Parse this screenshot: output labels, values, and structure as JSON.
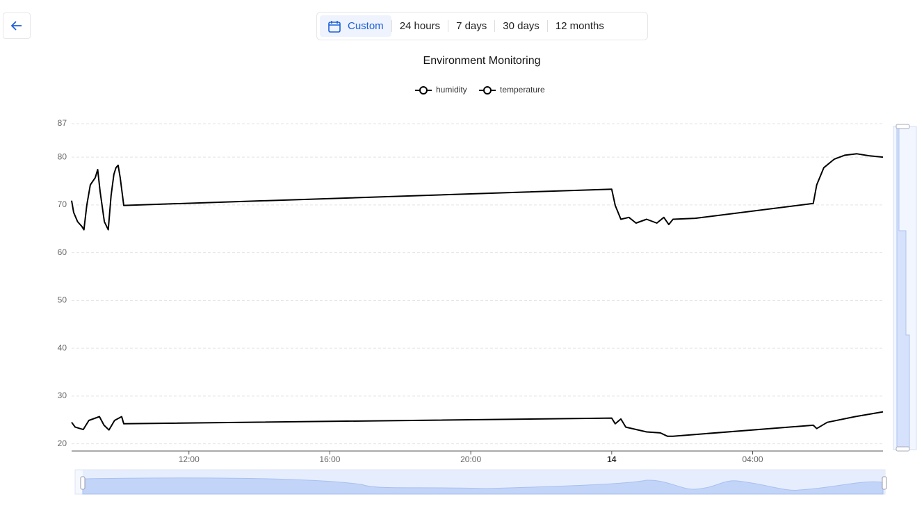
{
  "toolbar": {
    "buttons": [
      "Custom",
      "24 hours",
      "7 days",
      "30 days",
      "12 months"
    ]
  },
  "chart_data": {
    "type": "line",
    "title": "Environment Monitoring",
    "xlim": [
      8.67,
      31.7
    ],
    "xticks": [
      {
        "value": 12,
        "label": "12:00"
      },
      {
        "value": 16,
        "label": "16:00"
      },
      {
        "value": 20,
        "label": "20:00"
      },
      {
        "value": 24,
        "label": "14"
      },
      {
        "value": 28,
        "label": "04:00"
      }
    ],
    "ylim": [
      18.5,
      87
    ],
    "yticks": [
      20,
      30,
      40,
      50,
      60,
      70,
      80,
      87
    ],
    "grid": true,
    "legend": "top",
    "series": [
      {
        "name": "humidity",
        "color": "#000000",
        "x": [
          8.67,
          8.73,
          8.84,
          8.96,
          9.02,
          9.1,
          9.2,
          9.34,
          9.41,
          9.48,
          9.6,
          9.71,
          9.79,
          9.87,
          9.93,
          9.99,
          10.05,
          10.15,
          24.0,
          24.1,
          24.26,
          24.49,
          24.69,
          24.99,
          25.28,
          25.48,
          25.62,
          25.74,
          26.37,
          29.72,
          29.82,
          30.02,
          30.32,
          30.61,
          30.96,
          31.3,
          31.7
        ],
        "values": [
          70.9,
          68.4,
          66.5,
          65.5,
          64.8,
          69.9,
          74.2,
          75.7,
          77.4,
          72.8,
          66.5,
          64.8,
          72,
          76.4,
          77.8,
          78.3,
          75.7,
          69.9,
          73.3,
          69.9,
          67.0,
          67.4,
          66.2,
          67.0,
          66.2,
          67.4,
          65.9,
          67.0,
          67.2,
          70.3,
          74.2,
          77.8,
          79.6,
          80.4,
          80.7,
          80.3,
          80.0
        ]
      },
      {
        "name": "temperature",
        "color": "#000000",
        "x": [
          8.67,
          8.77,
          9.0,
          9.16,
          9.46,
          9.59,
          9.73,
          9.89,
          10.09,
          10.15,
          24.0,
          24.1,
          24.26,
          24.4,
          24.99,
          25.38,
          25.58,
          25.74,
          29.72,
          29.82,
          30.12,
          30.91,
          31.7
        ],
        "values": [
          24.5,
          23.5,
          23.0,
          24.9,
          25.7,
          23.9,
          22.9,
          24.9,
          25.7,
          24.2,
          25.4,
          24.2,
          25.2,
          23.5,
          22.5,
          22.3,
          21.6,
          21.6,
          23.9,
          23.2,
          24.5,
          25.7,
          26.7
        ]
      }
    ]
  }
}
